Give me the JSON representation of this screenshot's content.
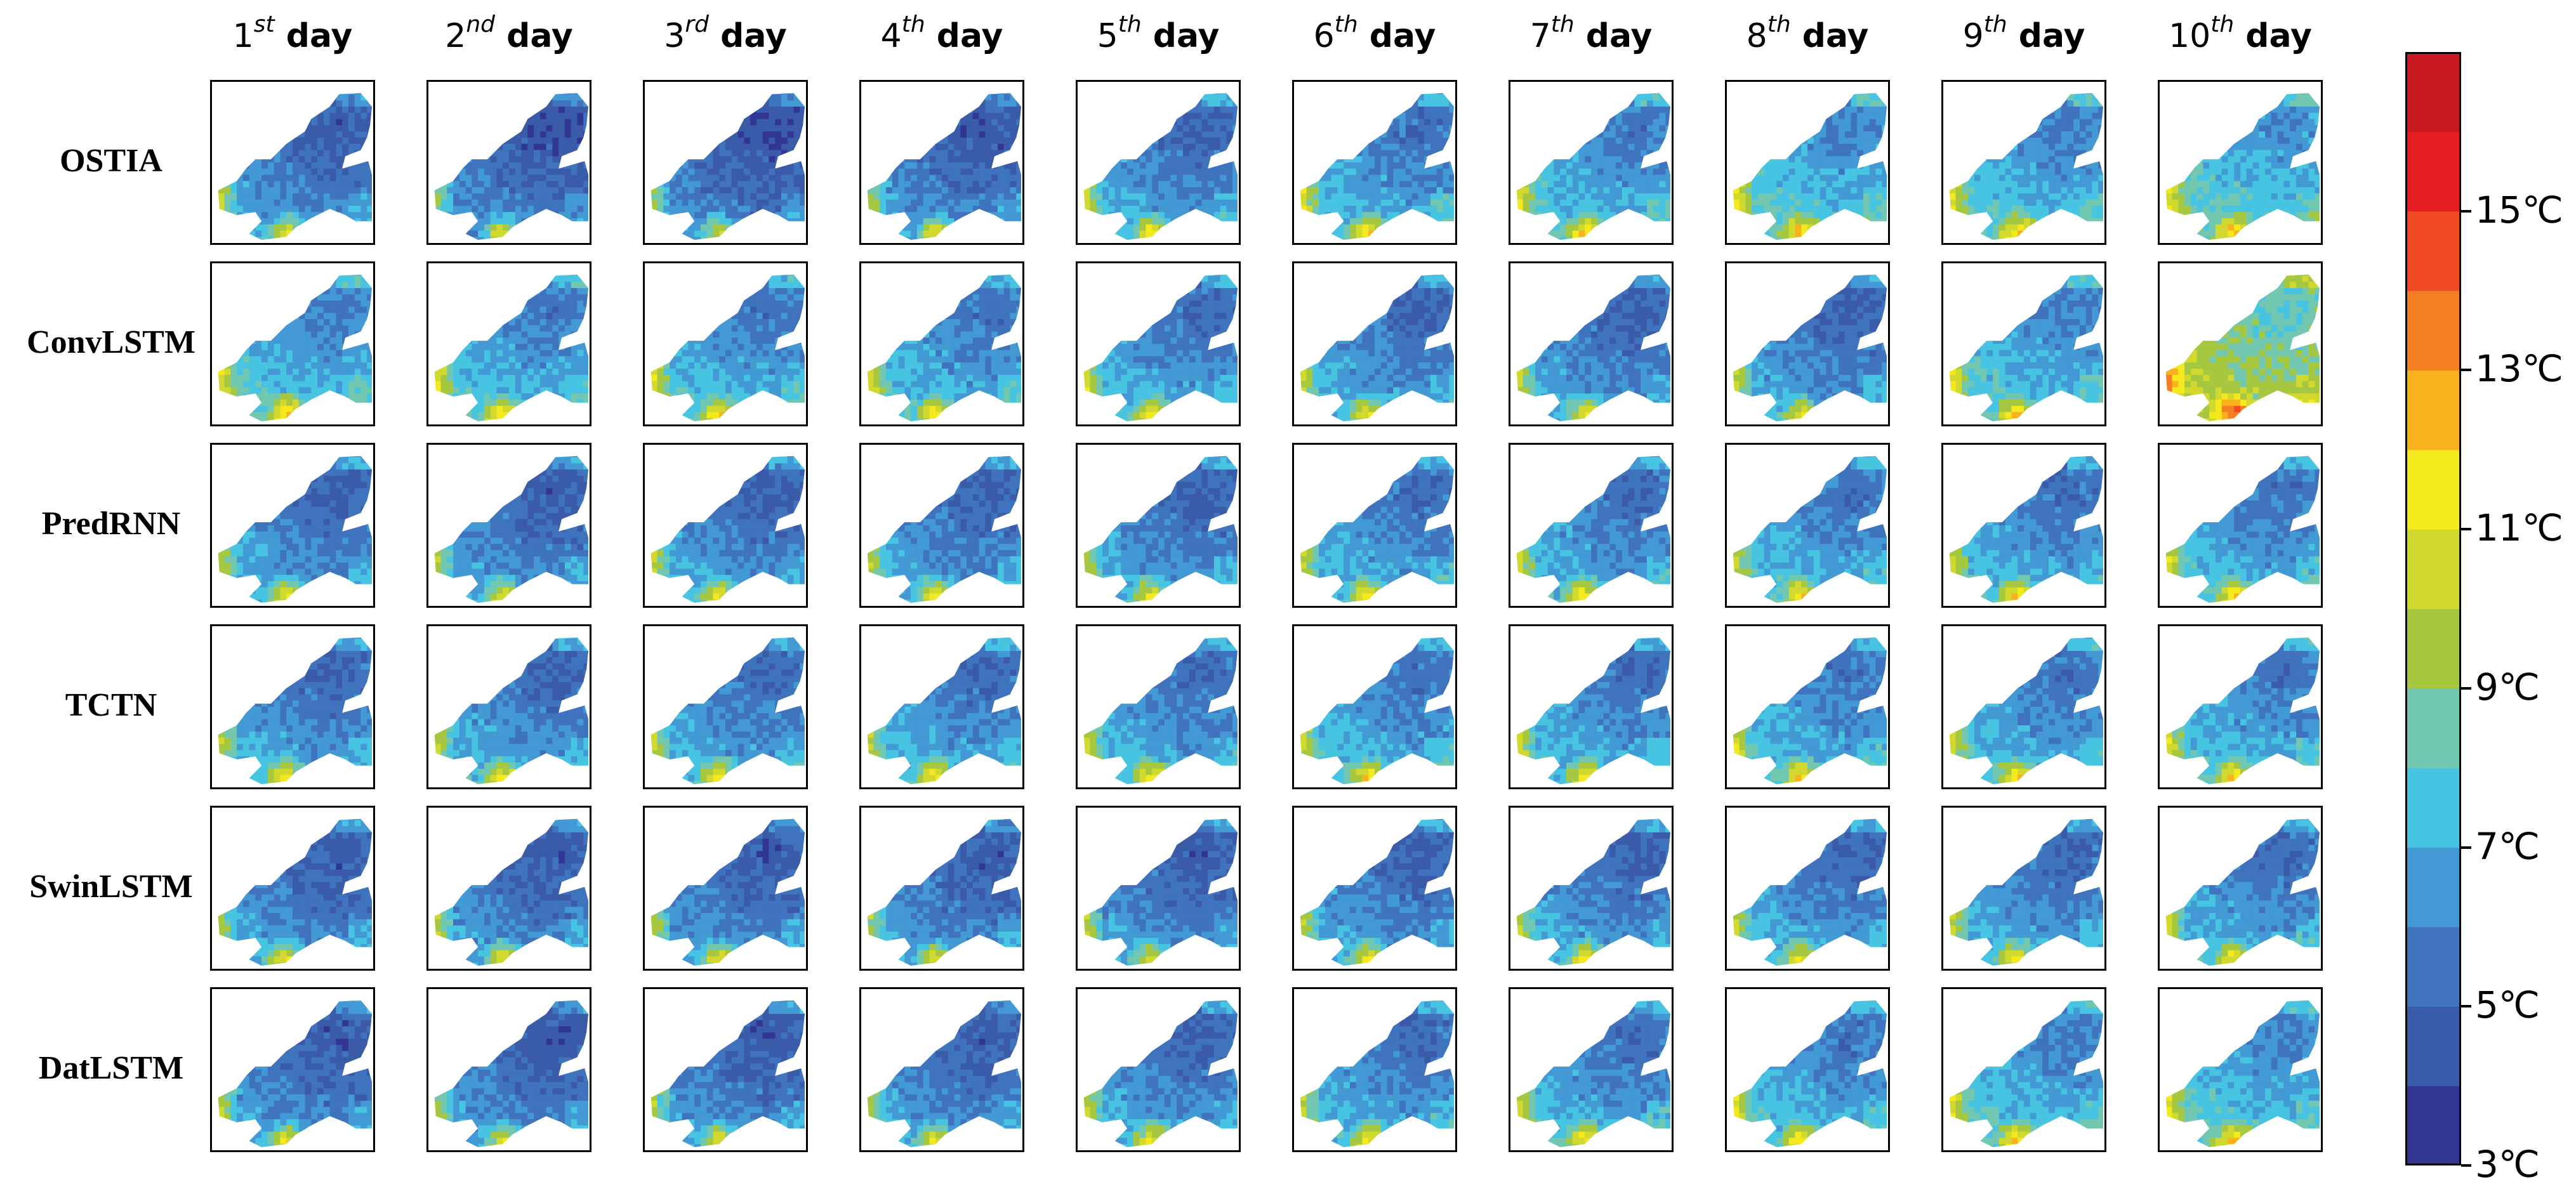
{
  "chart_data": {
    "type": "heatmap",
    "description_rows": "model",
    "description_cols": "forecast day",
    "day_labels": [
      {
        "num": "1",
        "sup": "st",
        "word": "day"
      },
      {
        "num": "2",
        "sup": "nd",
        "word": "day"
      },
      {
        "num": "3",
        "sup": "rd",
        "word": "day"
      },
      {
        "num": "4",
        "sup": "th",
        "word": "day"
      },
      {
        "num": "5",
        "sup": "th",
        "word": "day"
      },
      {
        "num": "6",
        "sup": "th",
        "word": "day"
      },
      {
        "num": "7",
        "sup": "th",
        "word": "day"
      },
      {
        "num": "8",
        "sup": "th",
        "word": "day"
      },
      {
        "num": "9",
        "sup": "th",
        "word": "day"
      },
      {
        "num": "10",
        "sup": "th",
        "word": "day"
      }
    ],
    "row_labels": [
      "OSTIA",
      "ConvLSTM",
      "PredRNN",
      "TCTN",
      "SwinLSTM",
      "DatLSTM"
    ],
    "colorbar": {
      "min": 3,
      "max": 17,
      "step": 1,
      "tick_values": [
        3,
        5,
        7,
        9,
        11,
        13,
        15
      ],
      "tick_labels": [
        "3℃",
        "5℃",
        "7℃",
        "9℃",
        "11℃",
        "13℃",
        "15℃"
      ],
      "colors": [
        "#313695",
        "#3a5ba8",
        "#3f73bd",
        "#4399d4",
        "#47c4e2",
        "#72c7b1",
        "#a6c841",
        "#d2d92e",
        "#f4e91c",
        "#f9b21d",
        "#f47f22",
        "#ef4a22",
        "#e51d20",
        "#c7191f"
      ]
    },
    "mean_temperature_by_row": [
      [
        6.0,
        5.6,
        5.5,
        5.8,
        6.4,
        6.8,
        7.0,
        7.4,
        7.2,
        7.6
      ],
      [
        7.2,
        7.0,
        6.9,
        6.8,
        6.6,
        6.4,
        6.2,
        6.2,
        7.2,
        9.4
      ],
      [
        6.2,
        6.0,
        6.2,
        6.2,
        6.2,
        6.6,
        6.6,
        6.8,
        6.7,
        6.8
      ],
      [
        6.4,
        6.4,
        6.5,
        6.6,
        6.6,
        6.8,
        6.7,
        6.8,
        6.8,
        6.9
      ],
      [
        6.0,
        5.9,
        5.9,
        5.9,
        6.0,
        6.2,
        6.3,
        6.4,
        6.5,
        6.6
      ],
      [
        5.9,
        5.8,
        5.9,
        6.0,
        6.3,
        6.6,
        6.7,
        6.9,
        7.1,
        7.3
      ]
    ]
  },
  "colors": {
    "land": "#ffffff",
    "frame": "#000000"
  }
}
